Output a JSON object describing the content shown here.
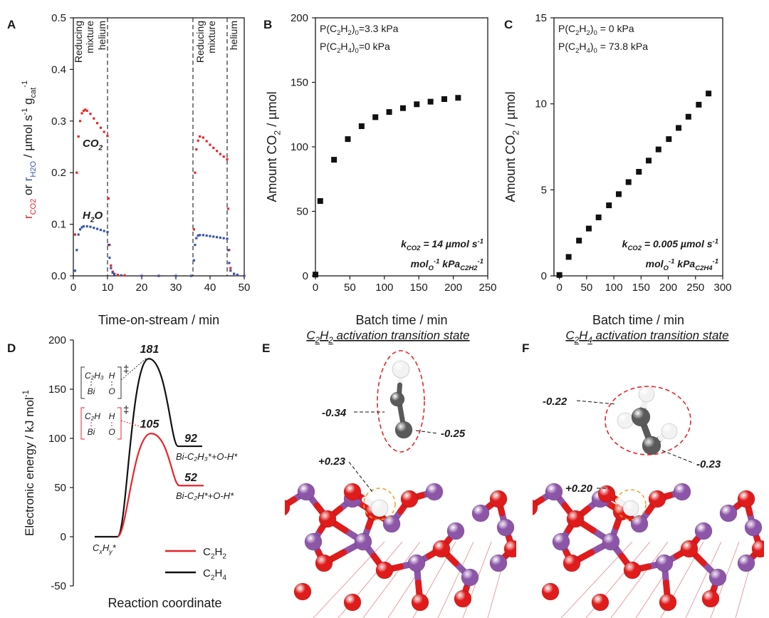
{
  "figure": {
    "panel_letters": [
      "A",
      "B",
      "C",
      "D",
      "E",
      "F"
    ],
    "colors": {
      "co2": "#e8252c",
      "h2o": "#3a56a6",
      "c2h2": "#e8252c",
      "c2h4": "#111111",
      "bismuth": "#8d55a8",
      "oxygen": "#e01b1b",
      "carbon": "#5a5a5a",
      "hydrogen": "#f2f2f2",
      "ellipse_red": "#e8252c",
      "ellipse_orange": "#f0a020"
    }
  },
  "chart_data": [
    {
      "panel": "A",
      "type": "scatter",
      "xlabel": "Time-on-stream / min",
      "ylabel_parts": [
        "r",
        "CO2",
        " or r",
        "H2O",
        " / µmol s",
        "-1",
        " g",
        "cat",
        "-1"
      ],
      "xlim": [
        0,
        50
      ],
      "ylim": [
        0,
        0.5
      ],
      "xticks": [
        "0",
        "10",
        "20",
        "30",
        "40",
        "50"
      ],
      "yticks": [
        "0.0",
        "0.1",
        "0.2",
        "0.3",
        "0.4",
        "0.5"
      ],
      "phase_lines_x": [
        10,
        35,
        45
      ],
      "phase_labels": [
        {
          "lines": [
            "Reducing",
            "mixture"
          ]
        },
        {
          "lines": [
            "helium"
          ]
        },
        {
          "lines": [
            "Reducing",
            "mixture"
          ]
        },
        {
          "lines": [
            "helium"
          ]
        }
      ],
      "series": [
        {
          "name": "CO2",
          "label_parts": [
            "CO",
            "2"
          ],
          "points": [
            [
              0.5,
              0.08
            ],
            [
              1,
              0.2
            ],
            [
              1.5,
              0.27
            ],
            [
              2,
              0.3
            ],
            [
              2.5,
              0.315
            ],
            [
              3,
              0.32
            ],
            [
              3.5,
              0.322
            ],
            [
              4,
              0.32
            ],
            [
              5,
              0.314
            ],
            [
              6,
              0.305
            ],
            [
              7,
              0.296
            ],
            [
              8,
              0.287
            ],
            [
              9,
              0.279
            ],
            [
              10,
              0.271
            ],
            [
              10.3,
              0.15
            ],
            [
              10.6,
              0.06
            ],
            [
              11,
              0.02
            ],
            [
              11.5,
              0.008
            ],
            [
              12,
              0.004
            ],
            [
              13,
              0.002
            ],
            [
              15,
              0.001
            ],
            [
              20,
              0.0
            ],
            [
              25,
              0.0
            ],
            [
              30,
              0.0
            ],
            [
              34.5,
              0.0
            ],
            [
              35.3,
              0.09
            ],
            [
              35.6,
              0.2
            ],
            [
              36,
              0.245
            ],
            [
              36.5,
              0.262
            ],
            [
              37,
              0.27
            ],
            [
              38,
              0.268
            ],
            [
              39,
              0.261
            ],
            [
              40,
              0.254
            ],
            [
              41,
              0.248
            ],
            [
              42,
              0.242
            ],
            [
              43,
              0.236
            ],
            [
              44,
              0.231
            ],
            [
              45,
              0.226
            ],
            [
              45.3,
              0.13
            ],
            [
              45.6,
              0.05
            ],
            [
              46,
              0.015
            ],
            [
              47,
              0.004
            ],
            [
              48,
              0.002
            ],
            [
              50,
              0.0
            ]
          ]
        },
        {
          "name": "H2O",
          "label_parts": [
            "H",
            "2",
            "O"
          ],
          "points": [
            [
              0.5,
              0.01
            ],
            [
              1,
              0.05
            ],
            [
              1.5,
              0.08
            ],
            [
              2,
              0.09
            ],
            [
              2.5,
              0.094
            ],
            [
              3,
              0.096
            ],
            [
              4,
              0.096
            ],
            [
              5,
              0.095
            ],
            [
              6,
              0.093
            ],
            [
              7,
              0.091
            ],
            [
              8,
              0.089
            ],
            [
              9,
              0.087
            ],
            [
              10,
              0.085
            ],
            [
              10.3,
              0.06
            ],
            [
              10.6,
              0.035
            ],
            [
              11,
              0.015
            ],
            [
              11.5,
              0.006
            ],
            [
              12,
              0.003
            ],
            [
              14,
              0.001
            ],
            [
              20,
              0.0
            ],
            [
              25,
              0.0
            ],
            [
              30,
              0.0
            ],
            [
              34.5,
              0.0
            ],
            [
              35.3,
              0.03
            ],
            [
              35.6,
              0.06
            ],
            [
              36,
              0.073
            ],
            [
              36.5,
              0.078
            ],
            [
              37,
              0.079
            ],
            [
              38,
              0.079
            ],
            [
              39,
              0.078
            ],
            [
              40,
              0.077
            ],
            [
              41,
              0.076
            ],
            [
              42,
              0.075
            ],
            [
              43,
              0.074
            ],
            [
              44,
              0.073
            ],
            [
              45,
              0.072
            ],
            [
              45.3,
              0.05
            ],
            [
              45.6,
              0.025
            ],
            [
              46,
              0.01
            ],
            [
              47,
              0.004
            ],
            [
              48,
              0.002
            ],
            [
              50,
              0.0
            ]
          ]
        }
      ]
    },
    {
      "panel": "B",
      "type": "scatter",
      "xlabel": "Batch time / min",
      "ylabel_parts": [
        "Amount CO",
        "2",
        " / µmol"
      ],
      "xlim": [
        0,
        250
      ],
      "ylim": [
        0,
        200
      ],
      "xticks": [
        "0",
        "50",
        "100",
        "150",
        "200",
        "250"
      ],
      "yticks": [
        "0",
        "50",
        "100",
        "150",
        "200"
      ],
      "conditions": [
        {
          "p": "P(C",
          "s1": "2",
          "h": "H",
          "s2": "2",
          "close": ")",
          "s3": "0",
          "val": "=3.3 kPa"
        },
        {
          "p": "P(C",
          "s1": "2",
          "h": "H",
          "s2": "4",
          "close": ")",
          "s3": "0",
          "val": "=0 kPa"
        }
      ],
      "rate_line1": {
        "k": "k",
        "ksub": "CO2",
        "eq": " = 14 µmol s",
        "sup": "-1"
      },
      "rate_line2": {
        "a": "mol",
        "asub": "O",
        "asup": "-1",
        "b": " kPa",
        "bsub": "C2H2",
        "bsup": "-1"
      },
      "x": [
        0,
        7,
        27,
        47,
        67,
        87,
        107,
        127,
        147,
        167,
        187,
        207
      ],
      "y": [
        1,
        58,
        90,
        106,
        116,
        123,
        127,
        130,
        133,
        135,
        137,
        138
      ]
    },
    {
      "panel": "C",
      "type": "scatter",
      "xlabel": "Batch time / min",
      "ylabel_parts": [
        "Amount CO",
        "2",
        " / µmol"
      ],
      "xlim": [
        -10,
        300
      ],
      "ylim": [
        0,
        15
      ],
      "xticks": [
        "0",
        "50",
        "100",
        "150",
        "200",
        "250",
        "300"
      ],
      "yticks": [
        "0",
        "5",
        "10",
        "15"
      ],
      "conditions": [
        {
          "p": "P(C",
          "s1": "2",
          "h": "H",
          "s2": "2",
          "close": ")",
          "s3": "0",
          "val": " = 0 kPa"
        },
        {
          "p": "P(C",
          "s1": "2",
          "h": "H",
          "s2": "4",
          "close": ")",
          "s3": "0",
          "val": " = 73.8 kPa"
        }
      ],
      "rate_line1": {
        "k": "k",
        "ksub": "CO2",
        "eq": " = 0.005 µmol s",
        "sup": "-1"
      },
      "rate_line2": {
        "a": "mol",
        "asub": "O",
        "asup": "-1",
        "b": " kPa",
        "bsub": "C2H4",
        "bsup": "-1"
      },
      "x": [
        0,
        17,
        36,
        54,
        72,
        91,
        109,
        127,
        146,
        164,
        182,
        201,
        219,
        237,
        256,
        274
      ],
      "y": [
        0.05,
        1.1,
        2.05,
        2.75,
        3.4,
        4.1,
        4.75,
        5.45,
        6.05,
        6.7,
        7.35,
        7.95,
        8.6,
        9.25,
        9.95,
        10.6
      ]
    },
    {
      "panel": "D",
      "type": "line",
      "xlabel": "Reaction coordinate",
      "ylabel_parts": [
        "Electronic energy / kJ mol",
        "-1"
      ],
      "ylim": [
        -50,
        200
      ],
      "yticks": [
        "-50",
        "0",
        "50",
        "100",
        "150",
        "200"
      ],
      "series": [
        {
          "name": "C2H2",
          "legend_parts": [
            "C",
            "2",
            "H",
            "2"
          ],
          "initial": 0,
          "ts": 105,
          "final": 52,
          "ts_label": "105",
          "final_label": "52",
          "product_label": "Bi-C₂H*+O-H*"
        },
        {
          "name": "C2H4",
          "legend_parts": [
            "C",
            "2",
            "H",
            "4"
          ],
          "initial": 0,
          "ts": 181,
          "final": 92,
          "ts_label": "181",
          "final_label": "92",
          "product_label": "Bi-C₂H₃*+O-H*"
        }
      ],
      "start_label": {
        "a": "C",
        "asub": "x",
        "b": "H",
        "bsub": "y",
        "c": "*"
      },
      "ts_c2h4_box": {
        "top_left": "C₂H₃",
        "top_right": "H",
        "bottom_left": "Bi",
        "bottom_right": "O",
        "dagger": "‡"
      },
      "ts_c2h2_box": {
        "top_left": "C₂H",
        "top_right": "H",
        "bottom_left": "Bi",
        "bottom_right": "O",
        "dagger": "‡"
      }
    }
  ],
  "structures": {
    "E": {
      "title_parts": [
        "C",
        "2",
        "H",
        "2",
        " activation transition state"
      ],
      "charge_labels": [
        "-0.34",
        "-0.25",
        "+0.23"
      ]
    },
    "F": {
      "title_parts": [
        "C",
        "2",
        "H",
        "4",
        " activation transition state"
      ],
      "charge_labels": [
        "-0.22",
        "-0.23",
        "+0.20"
      ]
    }
  }
}
